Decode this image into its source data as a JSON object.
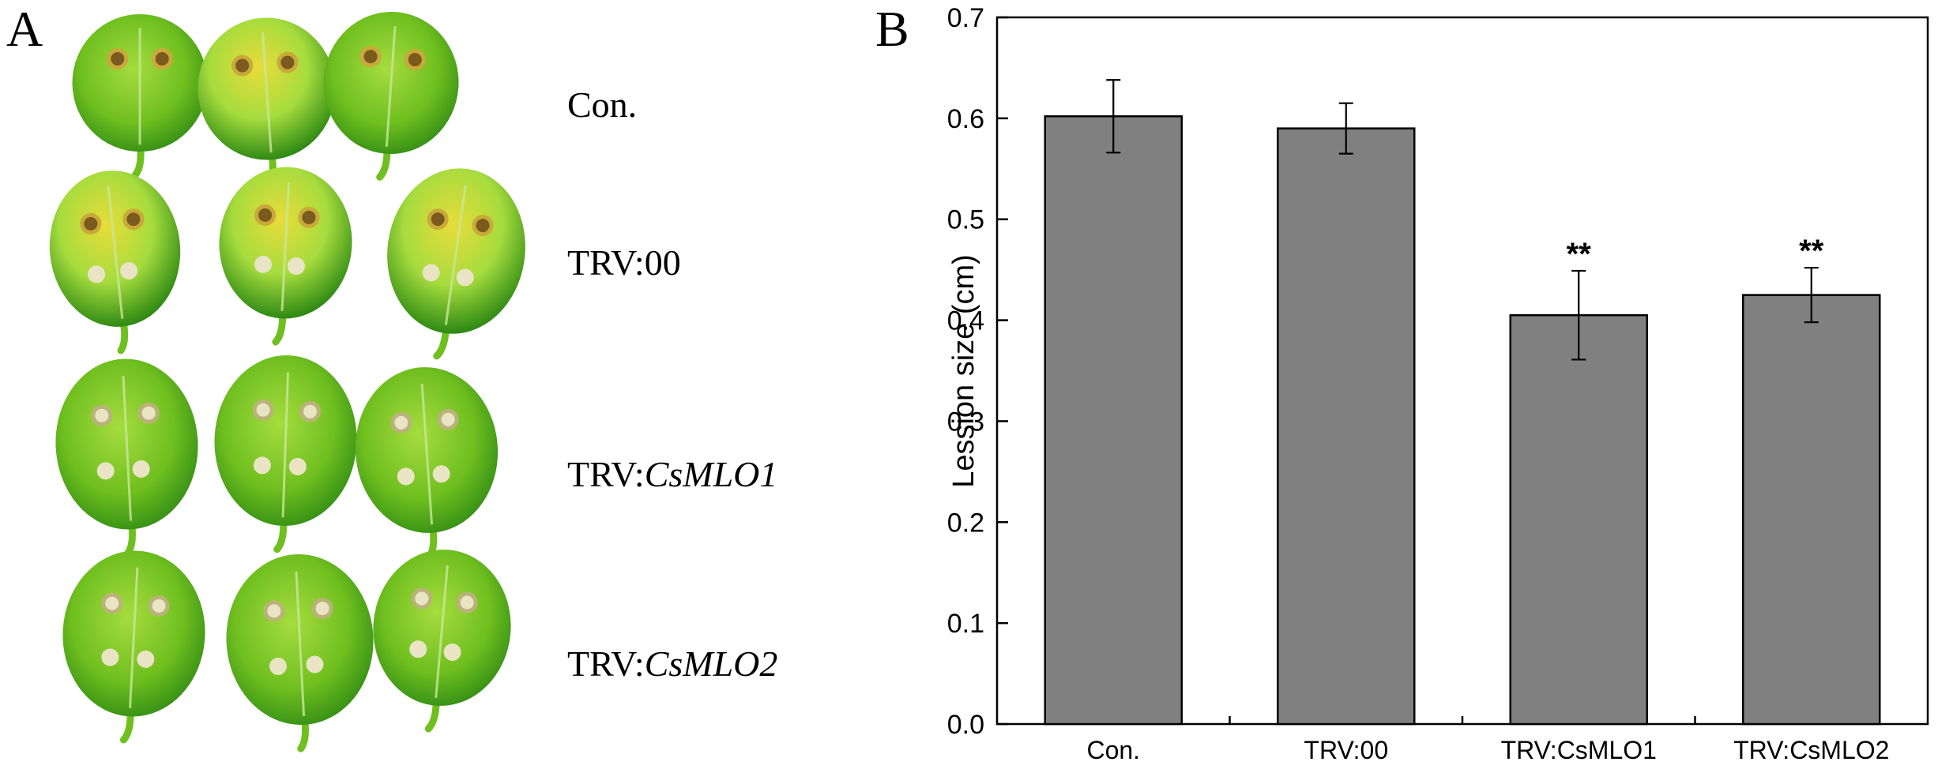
{
  "colors": {
    "bar_fill": "#808080",
    "leaf_light": "#a6dc3e",
    "leaf_mid": "#6fbf1f",
    "leaf_dark": "#2f8a14",
    "leaf_yellow": "#e8dc3a",
    "lesion_spot": "#e9e4c4"
  },
  "panel_a": {
    "label": "A",
    "rows": [
      {
        "prefix": "Con.",
        "italic": ""
      },
      {
        "prefix": "TRV:",
        "italic": "",
        "suffix": "00"
      },
      {
        "prefix": "TRV:",
        "italic": "CsMLO1"
      },
      {
        "prefix": "TRV:",
        "italic": "CsMLO2"
      }
    ],
    "image_note": "leaf-photo-grid"
  },
  "panel_b": {
    "label": "B"
  },
  "chart_data": {
    "type": "bar",
    "categories": [
      "Con.",
      "TRV:00",
      "TRV:CsMLO1",
      "TRV:CsMLO2"
    ],
    "values": [
      0.602,
      0.59,
      0.405,
      0.425
    ],
    "errors": [
      0.036,
      0.025,
      0.044,
      0.027
    ],
    "annotations": [
      "",
      "",
      "**",
      "**"
    ],
    "title": "",
    "xlabel": "",
    "ylabel": "Lession size (cm)",
    "ylim": [
      0.0,
      0.7
    ],
    "yticks": [
      "0.0",
      "0.1",
      "0.2",
      "0.3",
      "0.4",
      "0.5",
      "0.6",
      "0.7"
    ],
    "grid": false,
    "legend": "none"
  }
}
